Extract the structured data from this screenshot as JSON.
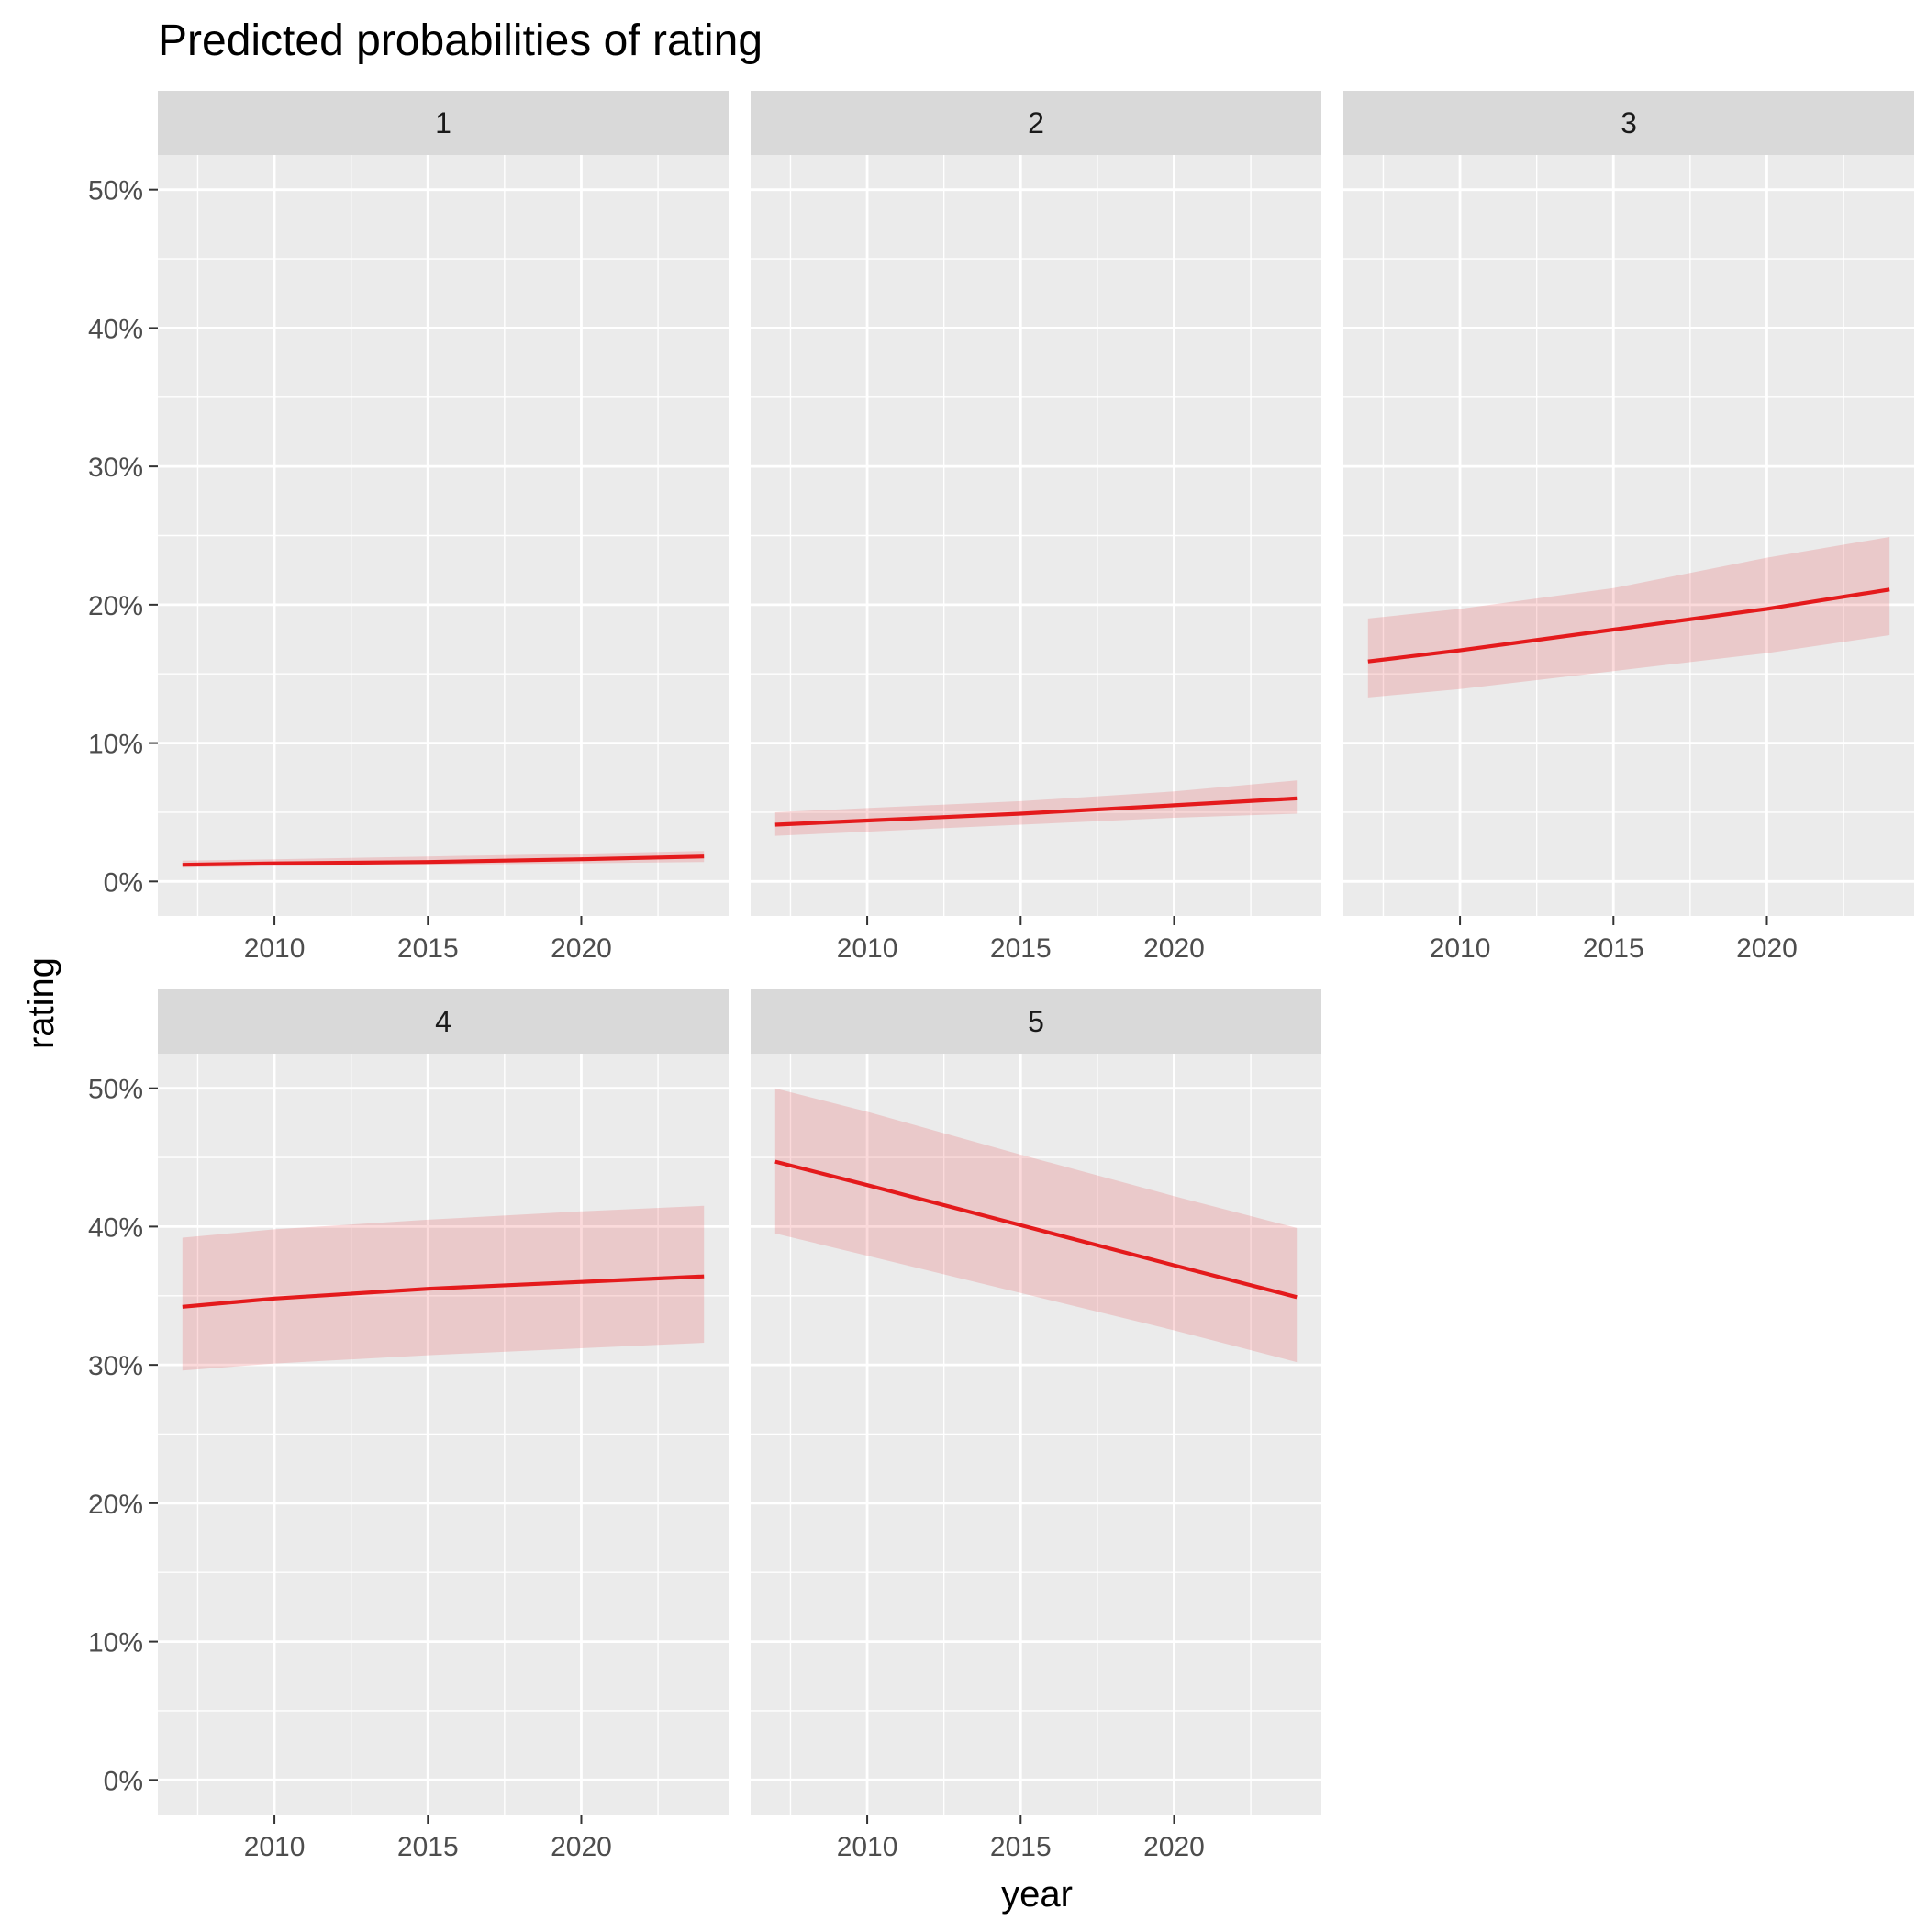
{
  "chart_data": {
    "type": "line",
    "title": "Predicted probabilities of rating",
    "xlabel": "year",
    "ylabel": "rating",
    "xlim": [
      2006.2,
      2024.8
    ],
    "ylim": [
      0,
      0.5
    ],
    "x_ticks": [
      2010,
      2015,
      2020
    ],
    "y_ticks": [
      0,
      0.1,
      0.2,
      0.3,
      0.4,
      0.5
    ],
    "y_tick_labels": [
      "0%",
      "10%",
      "20%",
      "30%",
      "40%",
      "50%"
    ],
    "grid": true,
    "panel_background": "#ebebeb",
    "strip_background": "#d9d9d9",
    "line_color": "#e41a1c",
    "ribbon_color": "#e41a1c",
    "ribbon_opacity": 0.16,
    "facets": [
      {
        "label": "1",
        "x": [
          2007,
          2010,
          2015,
          2020,
          2024
        ],
        "y": [
          0.012,
          0.013,
          0.014,
          0.016,
          0.018
        ],
        "lower": [
          0.01,
          0.011,
          0.012,
          0.013,
          0.014
        ],
        "upper": [
          0.015,
          0.016,
          0.018,
          0.02,
          0.022
        ]
      },
      {
        "label": "2",
        "x": [
          2007,
          2010,
          2015,
          2020,
          2024
        ],
        "y": [
          0.041,
          0.044,
          0.049,
          0.055,
          0.06
        ],
        "lower": [
          0.033,
          0.036,
          0.041,
          0.046,
          0.049
        ],
        "upper": [
          0.05,
          0.053,
          0.058,
          0.065,
          0.073
        ]
      },
      {
        "label": "3",
        "x": [
          2007,
          2010,
          2015,
          2020,
          2024
        ],
        "y": [
          0.159,
          0.167,
          0.182,
          0.197,
          0.211
        ],
        "lower": [
          0.133,
          0.139,
          0.152,
          0.165,
          0.178
        ],
        "upper": [
          0.19,
          0.197,
          0.212,
          0.234,
          0.249
        ]
      },
      {
        "label": "4",
        "x": [
          2007,
          2010,
          2015,
          2020,
          2024
        ],
        "y": [
          0.342,
          0.348,
          0.355,
          0.36,
          0.364
        ],
        "lower": [
          0.296,
          0.301,
          0.307,
          0.312,
          0.316
        ],
        "upper": [
          0.392,
          0.398,
          0.405,
          0.411,
          0.415
        ]
      },
      {
        "label": "5",
        "x": [
          2007,
          2010,
          2015,
          2020,
          2024
        ],
        "y": [
          0.447,
          0.43,
          0.401,
          0.372,
          0.349
        ],
        "lower": [
          0.395,
          0.379,
          0.352,
          0.325,
          0.302
        ],
        "upper": [
          0.5,
          0.483,
          0.452,
          0.422,
          0.399
        ]
      }
    ]
  }
}
